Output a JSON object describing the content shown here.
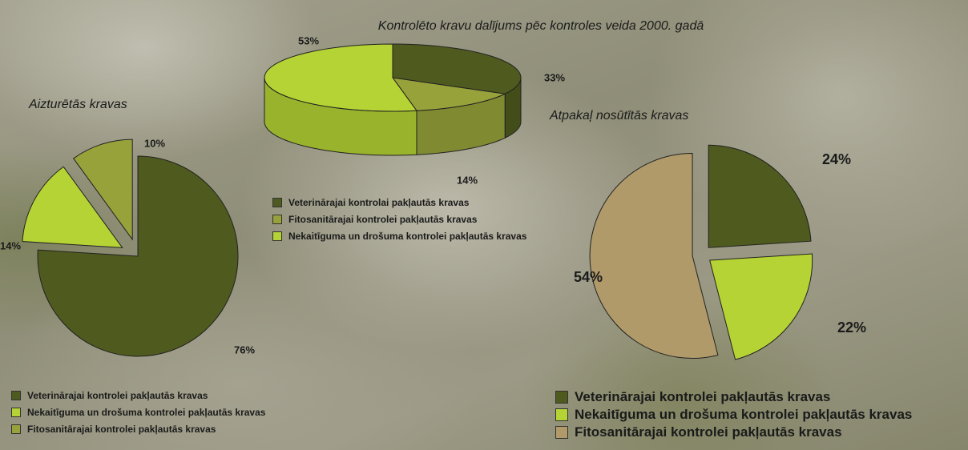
{
  "chart_data": [
    {
      "type": "pie",
      "title": "Aizturētās kravas",
      "categories": [
        "Veterinārajai kontrolei pakļautās kravas",
        "Nekaitīguma un drošuma kontrolei pakļautās kravas",
        "Fitosanitārajai kontrolei pakļautās kravas"
      ],
      "values": [
        76,
        14,
        10
      ],
      "value_labels": [
        "76%",
        "14%",
        "10%"
      ],
      "colors": [
        "#4f5a1e",
        "#b5d334",
        "#97a23a"
      ]
    },
    {
      "type": "pie3d",
      "title": "Kontrolēto kravu dalījums pēc kontroles veida 2000. gadā",
      "categories": [
        "Veterinārajai kontrolai pakļautās kravas",
        "Fitosanitārajai kontrolei pakļautās kravas",
        "Nekaitīguma un drošuma kontrolei pakļautās kravas"
      ],
      "values": [
        33,
        14,
        53
      ],
      "value_labels": [
        "33%",
        "14%",
        "53%"
      ],
      "colors": [
        "#4f5a1e",
        "#97a23a",
        "#b5d334"
      ]
    },
    {
      "type": "pie",
      "title": "Atpakaļ nosūtītās kravas",
      "categories": [
        "Veterinārajai kontrolei pakļautās kravas",
        "Nekaitīguma un drošuma kontrolei pakļautās kravas",
        "Fitosanitārajai kontrolei pakļautās kravas"
      ],
      "values": [
        24,
        22,
        54
      ],
      "value_labels": [
        "24%",
        "22%",
        "54%"
      ],
      "colors": [
        "#4f5a1e",
        "#b5d334",
        "#b09a6a"
      ]
    }
  ]
}
